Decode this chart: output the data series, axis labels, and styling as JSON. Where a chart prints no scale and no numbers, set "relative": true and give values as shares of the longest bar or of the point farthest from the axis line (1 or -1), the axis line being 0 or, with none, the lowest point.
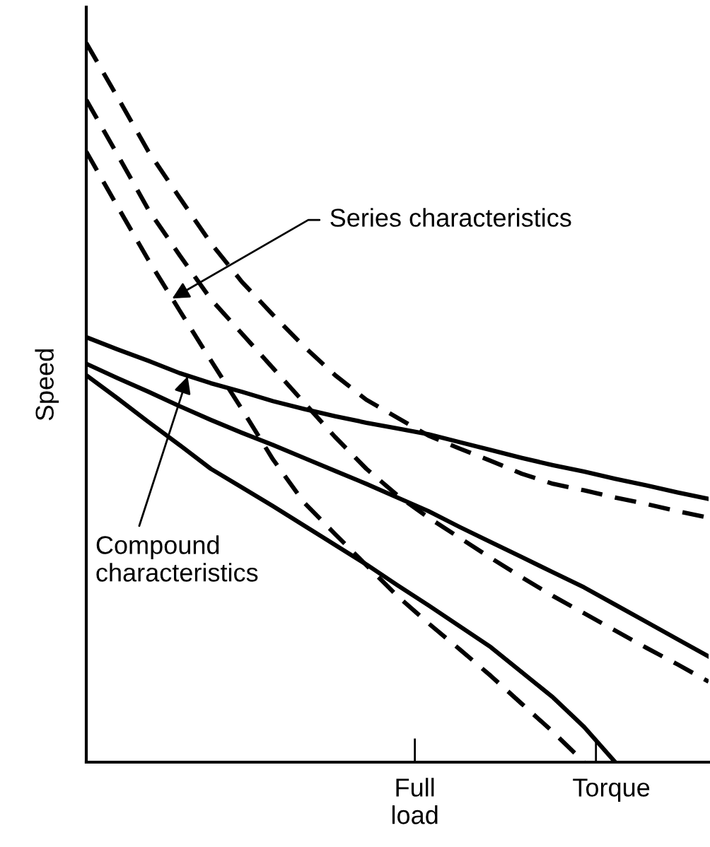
{
  "chart_data": {
    "type": "line",
    "relative": true,
    "ylabel": "Speed",
    "legend": false,
    "marker": "none",
    "categories": [
      null,
      null,
      null,
      null,
      null,
      null,
      null,
      null,
      null,
      null,
      null,
      null,
      null,
      null,
      null,
      null,
      null,
      null,
      null,
      null,
      null
    ],
    "series": [
      {
        "color": "#000000",
        "line_style": "dashed",
        "values": [
          1.0,
          0.925,
          0.849,
          0.785,
          0.722,
          0.668,
          0.622,
          0.578,
          0.538,
          0.504,
          0.479,
          0.454,
          0.436,
          0.419,
          0.401,
          0.387,
          0.378,
          0.368,
          0.359,
          0.349,
          0.34
        ]
      },
      {
        "color": "#000000",
        "line_style": "dashed",
        "values": [
          0.921,
          0.845,
          0.768,
          0.705,
          0.644,
          0.596,
          0.548,
          0.5,
          0.452,
          0.408,
          0.371,
          0.34,
          0.312,
          0.284,
          0.257,
          0.231,
          0.207,
          0.183,
          0.159,
          0.136,
          0.112
        ]
      },
      {
        "color": "#000000",
        "line_style": "dashed",
        "values": [
          0.849,
          0.773,
          0.698,
          0.628,
          0.559,
          0.491,
          0.421,
          0.361,
          0.317,
          0.274,
          0.231,
          0.193,
          0.157,
          0.12,
          0.081,
          0.042,
          0.0,
          null,
          null,
          null,
          null
        ]
      },
      {
        "color": "#000000",
        "line_style": "solid",
        "values": [
          0.591,
          0.574,
          0.558,
          0.541,
          0.527,
          0.515,
          0.502,
          0.491,
          0.481,
          0.472,
          0.464,
          0.456,
          0.445,
          0.434,
          0.423,
          0.413,
          0.404,
          0.394,
          0.385,
          0.375,
          0.366
        ]
      },
      {
        "color": "#000000",
        "line_style": "solid",
        "values": [
          0.554,
          0.534,
          0.515,
          0.495,
          0.476,
          0.458,
          0.441,
          0.423,
          0.405,
          0.387,
          0.368,
          0.349,
          0.327,
          0.306,
          0.285,
          0.264,
          0.243,
          0.219,
          0.195,
          0.171,
          0.147
        ]
      },
      {
        "color": "#000000",
        "line_style": "solid",
        "values": [
          0.538,
          0.506,
          0.473,
          0.441,
          0.408,
          0.382,
          0.356,
          0.329,
          0.302,
          0.275,
          0.246,
          0.218,
          0.189,
          0.16,
          0.125,
          0.09,
          0.049,
          0.0,
          null,
          null,
          null
        ]
      }
    ],
    "annotations": [
      "Series characteristics",
      "Compound\ncharacteristics",
      "Full\nload",
      "Torque"
    ]
  }
}
